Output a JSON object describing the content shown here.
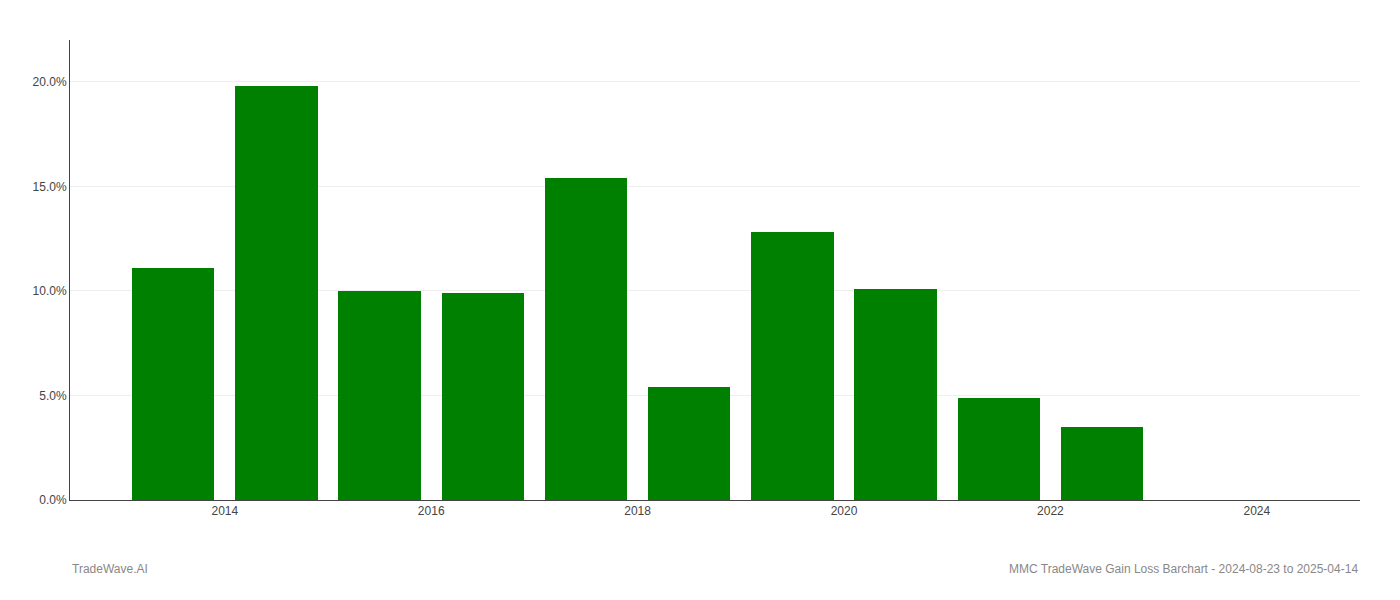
{
  "chart_data": {
    "type": "bar",
    "x": [
      2013.5,
      2014.5,
      2015.5,
      2016.5,
      2017.5,
      2018.5,
      2019.5,
      2020.5,
      2021.5,
      2022.5
    ],
    "values": [
      0.111,
      0.198,
      0.1,
      0.099,
      0.154,
      0.054,
      0.128,
      0.101,
      0.049,
      0.035
    ],
    "color": "#008000",
    "xlim": [
      2012.5,
      2025.0
    ],
    "xticks": [
      2014,
      2016,
      2018,
      2020,
      2022,
      2024
    ],
    "ylim": [
      0.0,
      0.22
    ],
    "yticks": [
      {
        "value": 0.0,
        "label": "0.0%"
      },
      {
        "value": 0.05,
        "label": "5.0%"
      },
      {
        "value": 0.1,
        "label": "10.0%"
      },
      {
        "value": 0.15,
        "label": "15.0%"
      },
      {
        "value": 0.2,
        "label": "20.0%"
      }
    ],
    "grid": true,
    "annotations": [
      "TradeWave.AI",
      "MMC TradeWave Gain Loss Barchart - 2024-08-23 to 2025-04-14"
    ]
  }
}
